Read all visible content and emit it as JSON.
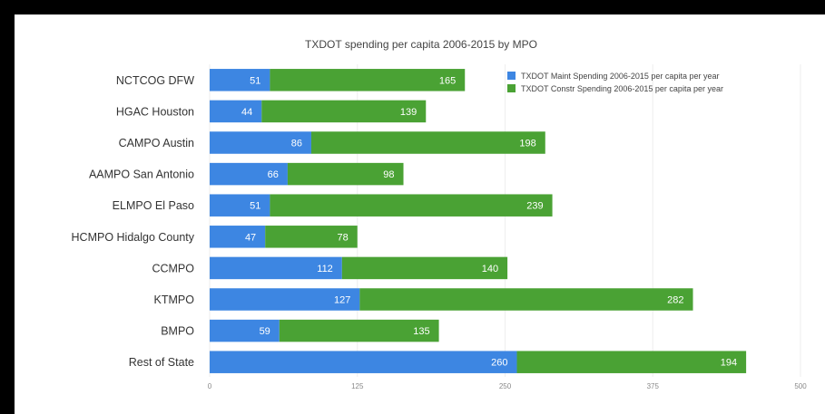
{
  "chart_data": {
    "type": "bar",
    "orientation": "horizontal",
    "stacked": true,
    "title": "TXDOT spending per capita 2006-2015 by MPO",
    "categories": [
      "NCTCOG DFW",
      "HGAC Houston",
      "CAMPO Austin",
      "AAMPO San Antonio",
      "ELMPO El Paso",
      "HCMPO Hidalgo County",
      "CCMPO",
      "KTMPO",
      "BMPO",
      "Rest of State"
    ],
    "series": [
      {
        "name": "TXDOT Maint Spending 2006-2015 per capita per year",
        "color": "#3d86e2",
        "values": [
          51,
          44,
          86,
          66,
          51,
          47,
          112,
          127,
          59,
          260
        ]
      },
      {
        "name": "TXDOT Constr Spending 2006-2015 per capita per year",
        "color": "#4aa234",
        "values": [
          165,
          139,
          198,
          98,
          239,
          78,
          140,
          282,
          135,
          194
        ]
      }
    ],
    "xlim": [
      0,
      500
    ],
    "xticks": [
      0,
      125,
      250,
      375,
      500
    ],
    "grid": true,
    "legend_position": "top-right"
  }
}
